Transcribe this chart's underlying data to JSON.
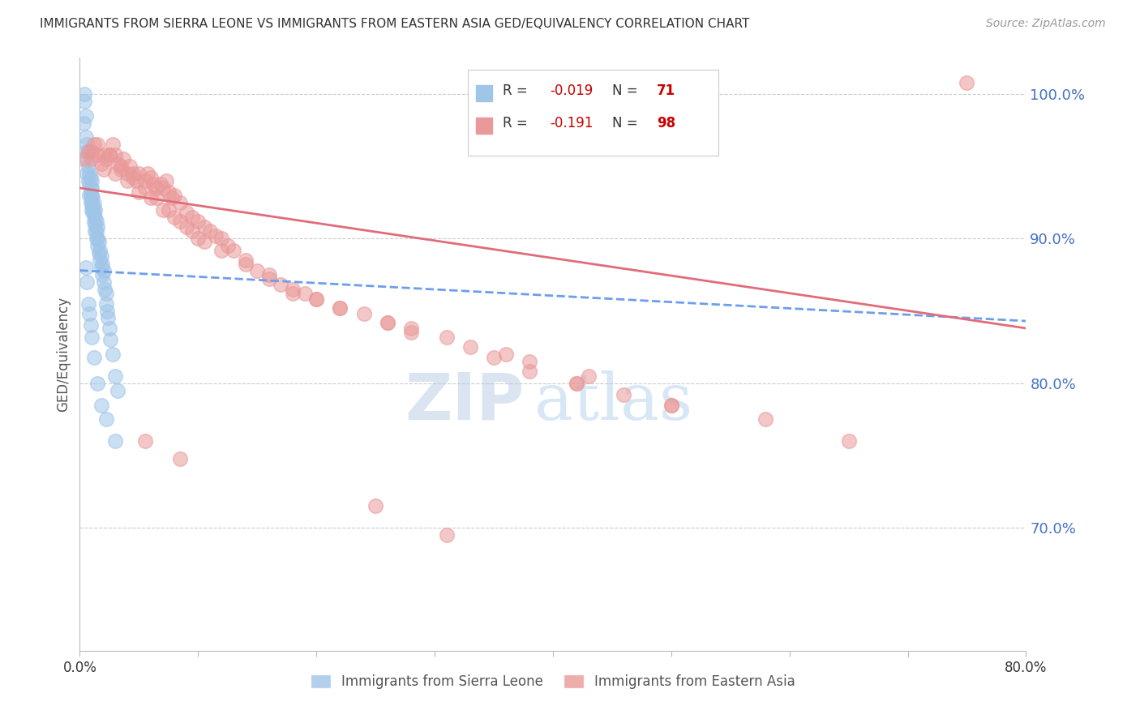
{
  "title": "IMMIGRANTS FROM SIERRA LEONE VS IMMIGRANTS FROM EASTERN ASIA GED/EQUIVALENCY CORRELATION CHART",
  "source": "Source: ZipAtlas.com",
  "ylabel": "GED/Equivalency",
  "right_yticks": [
    0.7,
    0.8,
    0.9,
    1.0
  ],
  "right_yticklabels": [
    "70.0%",
    "80.0%",
    "90.0%",
    "100.0%"
  ],
  "xlim": [
    0.0,
    0.8
  ],
  "ylim": [
    0.615,
    1.025
  ],
  "legend_r_blue": "-0.019",
  "legend_n_blue": "71",
  "legend_r_pink": "-0.191",
  "legend_n_pink": "98",
  "blue_color": "#9fc5e8",
  "pink_color": "#ea9999",
  "blue_line_color": "#6d9eeb",
  "pink_line_color": "#e06c7a",
  "watermark_zip": "ZIP",
  "watermark_atlas": "atlas",
  "grid_color": "#cccccc",
  "background_color": "#ffffff",
  "blue_x": [
    0.003,
    0.004,
    0.004,
    0.005,
    0.005,
    0.005,
    0.006,
    0.006,
    0.006,
    0.007,
    0.007,
    0.007,
    0.008,
    0.008,
    0.008,
    0.009,
    0.009,
    0.009,
    0.009,
    0.01,
    0.01,
    0.01,
    0.01,
    0.01,
    0.011,
    0.011,
    0.011,
    0.012,
    0.012,
    0.012,
    0.013,
    0.013,
    0.013,
    0.013,
    0.014,
    0.014,
    0.014,
    0.015,
    0.015,
    0.015,
    0.016,
    0.016,
    0.017,
    0.017,
    0.018,
    0.018,
    0.019,
    0.019,
    0.02,
    0.02,
    0.021,
    0.022,
    0.022,
    0.023,
    0.024,
    0.025,
    0.026,
    0.028,
    0.03,
    0.032,
    0.005,
    0.006,
    0.007,
    0.008,
    0.009,
    0.01,
    0.012,
    0.015,
    0.018,
    0.022,
    0.03
  ],
  "blue_y": [
    0.98,
    0.995,
    1.0,
    0.96,
    0.97,
    0.985,
    0.945,
    0.955,
    0.965,
    0.94,
    0.95,
    0.96,
    0.93,
    0.938,
    0.945,
    0.925,
    0.93,
    0.935,
    0.942,
    0.92,
    0.925,
    0.93,
    0.935,
    0.94,
    0.918,
    0.922,
    0.928,
    0.912,
    0.918,
    0.924,
    0.905,
    0.91,
    0.915,
    0.92,
    0.9,
    0.905,
    0.912,
    0.895,
    0.9,
    0.908,
    0.89,
    0.898,
    0.885,
    0.892,
    0.88,
    0.888,
    0.875,
    0.882,
    0.87,
    0.878,
    0.865,
    0.855,
    0.862,
    0.85,
    0.845,
    0.838,
    0.83,
    0.82,
    0.805,
    0.795,
    0.88,
    0.87,
    0.855,
    0.848,
    0.84,
    0.832,
    0.818,
    0.8,
    0.785,
    0.775,
    0.76
  ],
  "pink_x": [
    0.003,
    0.007,
    0.01,
    0.012,
    0.015,
    0.018,
    0.02,
    0.022,
    0.025,
    0.028,
    0.03,
    0.032,
    0.035,
    0.037,
    0.04,
    0.042,
    0.045,
    0.048,
    0.05,
    0.055,
    0.057,
    0.06,
    0.062,
    0.065,
    0.068,
    0.07,
    0.073,
    0.075,
    0.078,
    0.08,
    0.085,
    0.09,
    0.095,
    0.1,
    0.105,
    0.11,
    0.115,
    0.12,
    0.125,
    0.13,
    0.14,
    0.15,
    0.16,
    0.17,
    0.18,
    0.19,
    0.2,
    0.22,
    0.24,
    0.26,
    0.01,
    0.02,
    0.03,
    0.04,
    0.05,
    0.06,
    0.07,
    0.08,
    0.09,
    0.1,
    0.015,
    0.025,
    0.035,
    0.045,
    0.055,
    0.065,
    0.075,
    0.085,
    0.095,
    0.105,
    0.12,
    0.14,
    0.16,
    0.2,
    0.28,
    0.35,
    0.42,
    0.5,
    0.58,
    0.65,
    0.38,
    0.42,
    0.46,
    0.5,
    0.28,
    0.33,
    0.38,
    0.43,
    0.18,
    0.22,
    0.26,
    0.31,
    0.36,
    0.055,
    0.085,
    0.25,
    0.31,
    0.75
  ],
  "pink_y": [
    0.955,
    0.96,
    0.96,
    0.965,
    0.958,
    0.952,
    0.958,
    0.955,
    0.958,
    0.965,
    0.958,
    0.952,
    0.948,
    0.955,
    0.945,
    0.95,
    0.945,
    0.94,
    0.945,
    0.94,
    0.945,
    0.942,
    0.938,
    0.935,
    0.938,
    0.935,
    0.94,
    0.932,
    0.928,
    0.93,
    0.925,
    0.918,
    0.915,
    0.912,
    0.908,
    0.905,
    0.902,
    0.9,
    0.895,
    0.892,
    0.885,
    0.878,
    0.872,
    0.868,
    0.865,
    0.862,
    0.858,
    0.852,
    0.848,
    0.842,
    0.955,
    0.948,
    0.945,
    0.94,
    0.932,
    0.928,
    0.92,
    0.915,
    0.908,
    0.9,
    0.965,
    0.958,
    0.95,
    0.942,
    0.935,
    0.928,
    0.92,
    0.912,
    0.905,
    0.898,
    0.892,
    0.882,
    0.875,
    0.858,
    0.835,
    0.818,
    0.8,
    0.785,
    0.775,
    0.76,
    0.808,
    0.8,
    0.792,
    0.785,
    0.838,
    0.825,
    0.815,
    0.805,
    0.862,
    0.852,
    0.842,
    0.832,
    0.82,
    0.76,
    0.748,
    0.715,
    0.695,
    1.008
  ],
  "blue_line_x": [
    0.0,
    0.8
  ],
  "blue_line_y": [
    0.878,
    0.843
  ],
  "pink_line_x": [
    0.0,
    0.8
  ],
  "pink_line_y": [
    0.935,
    0.838
  ]
}
